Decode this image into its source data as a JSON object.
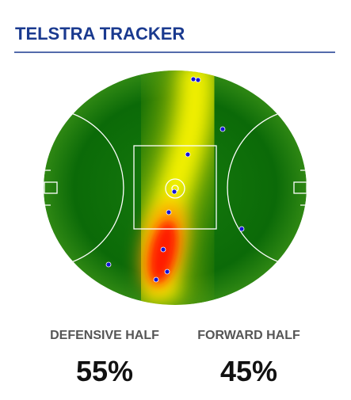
{
  "header": {
    "title": "TELSTRA TRACKER"
  },
  "stats": [
    {
      "label": "DEFENSIVE HALF",
      "value": "55%"
    },
    {
      "label": "FORWARD HALF",
      "value": "45%"
    }
  ]
}
